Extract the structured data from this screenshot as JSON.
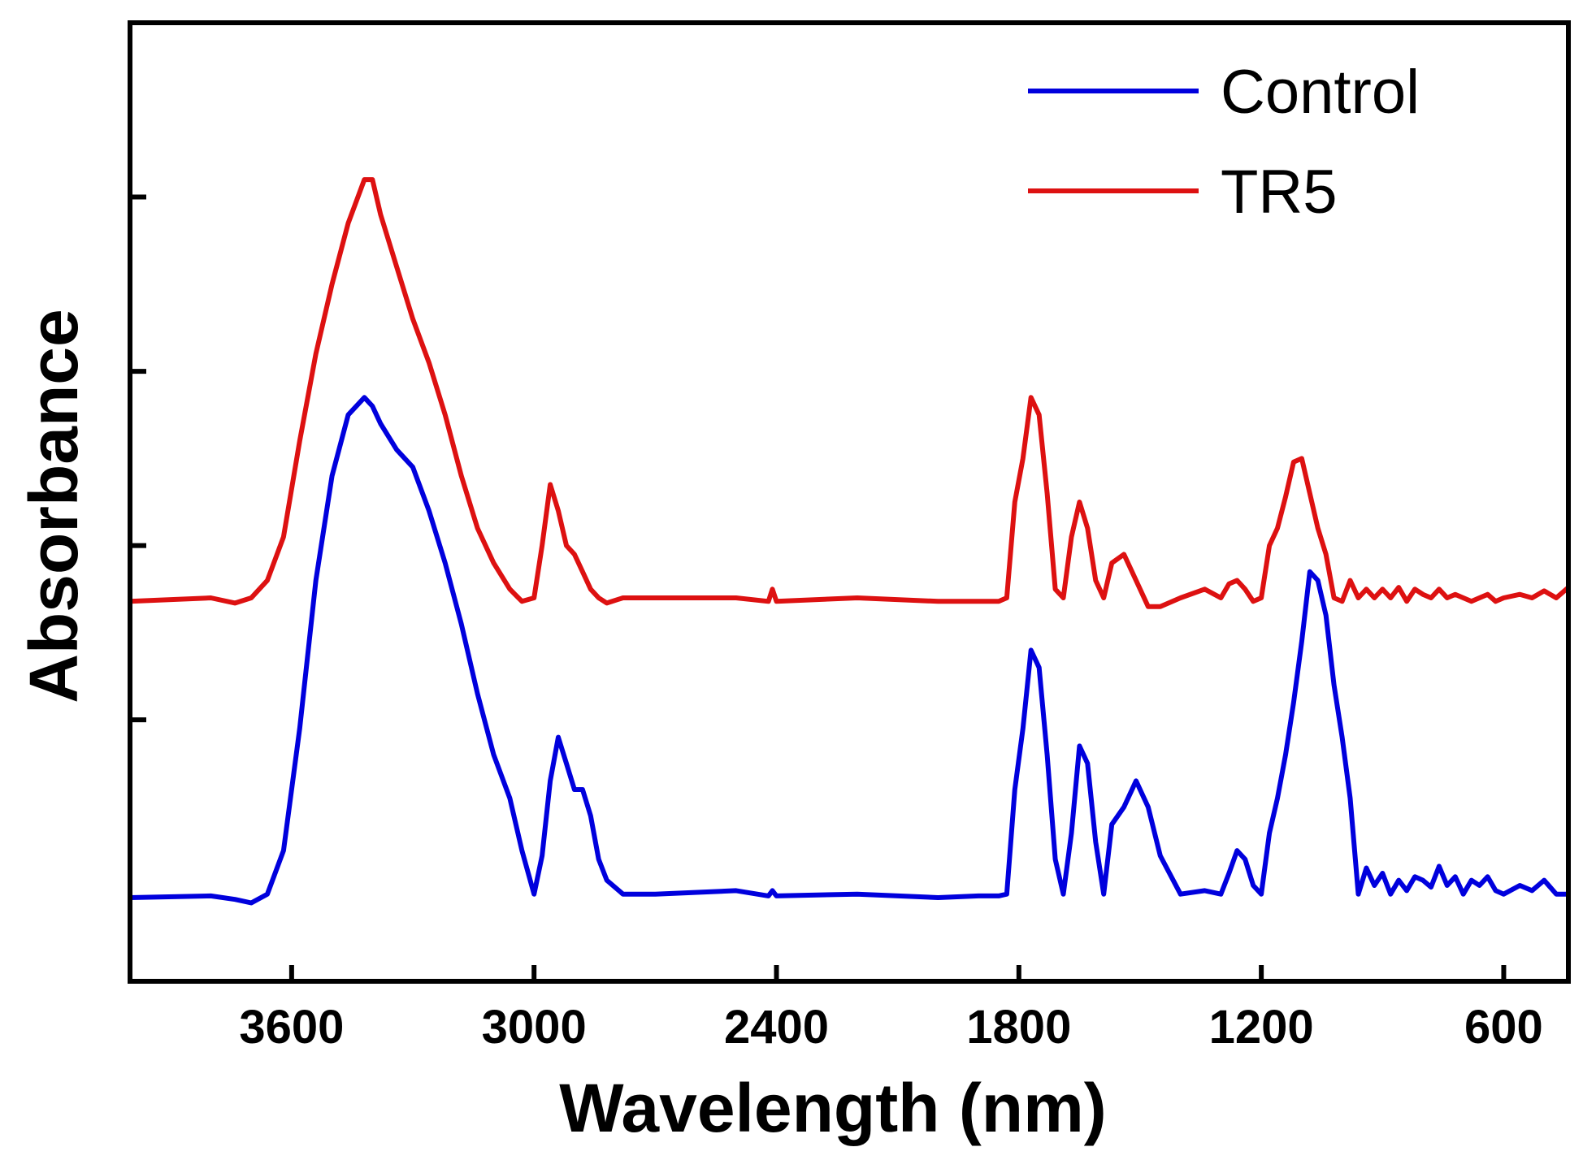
{
  "chart_data": {
    "type": "line",
    "title": "",
    "xlabel": "Wavelength (nm)",
    "ylabel": "Absorbance",
    "xlim": [
      4000,
      440
    ],
    "x_reversed": true,
    "ylim": [
      0,
      5.5
    ],
    "x_ticks": [
      3600,
      3000,
      2400,
      1800,
      1200,
      600
    ],
    "x_tick_labels": [
      "3600",
      "3000",
      "2400",
      "1800",
      "1200",
      "600"
    ],
    "y_ticks": [
      1.5,
      2.5,
      3.5,
      4.5
    ],
    "y_tick_labels_visible": false,
    "grid": false,
    "legend": {
      "position": "top-right",
      "entries": [
        "Control",
        "TR5"
      ]
    },
    "series": [
      {
        "name": "Control",
        "color": "#0000dd",
        "x": [
          4000,
          3800,
          3740,
          3700,
          3660,
          3620,
          3580,
          3540,
          3500,
          3460,
          3420,
          3400,
          3380,
          3340,
          3300,
          3260,
          3220,
          3180,
          3140,
          3100,
          3060,
          3030,
          3000,
          2980,
          2960,
          2940,
          2920,
          2900,
          2880,
          2860,
          2840,
          2820,
          2780,
          2700,
          2500,
          2420,
          2410,
          2400,
          2200,
          2000,
          1900,
          1850,
          1830,
          1810,
          1790,
          1770,
          1750,
          1730,
          1710,
          1690,
          1670,
          1650,
          1630,
          1610,
          1590,
          1570,
          1540,
          1510,
          1480,
          1450,
          1400,
          1340,
          1300,
          1280,
          1260,
          1240,
          1220,
          1200,
          1180,
          1160,
          1140,
          1120,
          1100,
          1080,
          1060,
          1040,
          1020,
          1000,
          980,
          960,
          940,
          920,
          900,
          880,
          860,
          840,
          820,
          800,
          780,
          760,
          740,
          720,
          700,
          680,
          660,
          640,
          620,
          600,
          560,
          530,
          500,
          470,
          440
        ],
        "y": [
          0.48,
          0.49,
          0.47,
          0.45,
          0.5,
          0.75,
          1.45,
          2.3,
          2.9,
          3.25,
          3.35,
          3.3,
          3.2,
          3.05,
          2.95,
          2.7,
          2.4,
          2.05,
          1.65,
          1.3,
          1.05,
          0.75,
          0.5,
          0.72,
          1.15,
          1.4,
          1.25,
          1.1,
          1.1,
          0.95,
          0.7,
          0.58,
          0.5,
          0.5,
          0.52,
          0.49,
          0.52,
          0.49,
          0.5,
          0.48,
          0.49,
          0.49,
          0.5,
          1.1,
          1.45,
          1.9,
          1.8,
          1.3,
          0.7,
          0.5,
          0.85,
          1.35,
          1.25,
          0.8,
          0.5,
          0.9,
          1.0,
          1.15,
          1.0,
          0.72,
          0.5,
          0.52,
          0.5,
          0.62,
          0.75,
          0.7,
          0.55,
          0.5,
          0.85,
          1.05,
          1.3,
          1.6,
          1.95,
          2.35,
          2.3,
          2.1,
          1.7,
          1.4,
          1.05,
          0.5,
          0.65,
          0.55,
          0.62,
          0.5,
          0.58,
          0.52,
          0.6,
          0.58,
          0.54,
          0.66,
          0.55,
          0.6,
          0.5,
          0.58,
          0.55,
          0.6,
          0.52,
          0.5,
          0.55,
          0.52,
          0.58,
          0.5,
          0.5
        ]
      },
      {
        "name": "TR5",
        "color": "#dd1111",
        "x": [
          4000,
          3800,
          3740,
          3700,
          3660,
          3620,
          3580,
          3540,
          3500,
          3460,
          3420,
          3400,
          3380,
          3340,
          3300,
          3260,
          3220,
          3180,
          3140,
          3100,
          3060,
          3030,
          3000,
          2980,
          2960,
          2940,
          2920,
          2900,
          2880,
          2860,
          2840,
          2820,
          2780,
          2700,
          2500,
          2420,
          2410,
          2400,
          2200,
          2000,
          1900,
          1850,
          1830,
          1810,
          1790,
          1770,
          1750,
          1730,
          1710,
          1690,
          1670,
          1650,
          1630,
          1610,
          1590,
          1570,
          1540,
          1510,
          1480,
          1450,
          1400,
          1340,
          1300,
          1280,
          1260,
          1240,
          1220,
          1200,
          1180,
          1160,
          1140,
          1120,
          1100,
          1080,
          1060,
          1040,
          1020,
          1000,
          980,
          960,
          940,
          920,
          900,
          880,
          860,
          840,
          820,
          800,
          780,
          760,
          740,
          720,
          700,
          680,
          660,
          640,
          620,
          600,
          560,
          530,
          500,
          470,
          440
        ],
        "y": [
          2.18,
          2.2,
          2.17,
          2.2,
          2.3,
          2.55,
          3.1,
          3.6,
          4.0,
          4.35,
          4.6,
          4.6,
          4.4,
          4.1,
          3.8,
          3.55,
          3.25,
          2.9,
          2.6,
          2.4,
          2.25,
          2.18,
          2.2,
          2.5,
          2.85,
          2.7,
          2.5,
          2.45,
          2.35,
          2.25,
          2.2,
          2.17,
          2.2,
          2.2,
          2.2,
          2.18,
          2.25,
          2.18,
          2.2,
          2.18,
          2.18,
          2.18,
          2.2,
          2.75,
          3.0,
          3.35,
          3.25,
          2.8,
          2.25,
          2.2,
          2.55,
          2.75,
          2.6,
          2.3,
          2.2,
          2.4,
          2.45,
          2.3,
          2.15,
          2.15,
          2.2,
          2.25,
          2.2,
          2.28,
          2.3,
          2.25,
          2.18,
          2.2,
          2.5,
          2.6,
          2.78,
          2.98,
          3.0,
          2.8,
          2.6,
          2.45,
          2.2,
          2.18,
          2.3,
          2.2,
          2.25,
          2.2,
          2.25,
          2.2,
          2.26,
          2.18,
          2.25,
          2.22,
          2.2,
          2.25,
          2.2,
          2.22,
          2.2,
          2.18,
          2.2,
          2.22,
          2.18,
          2.2,
          2.22,
          2.2,
          2.24,
          2.2,
          2.26
        ]
      }
    ]
  }
}
